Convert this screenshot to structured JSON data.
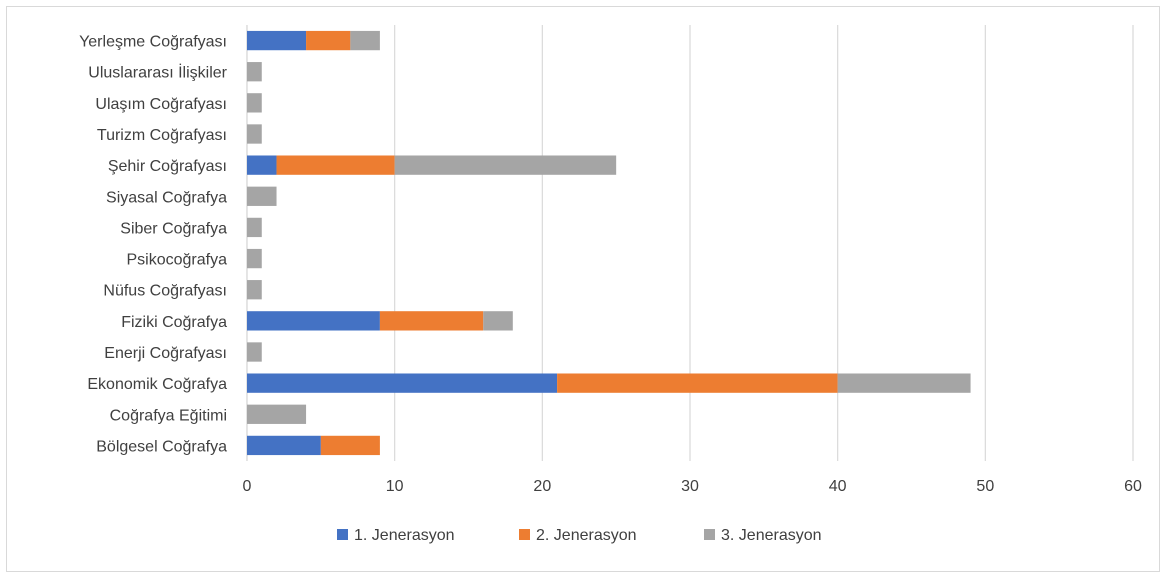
{
  "chart_data": {
    "type": "bar",
    "orientation": "horizontal",
    "stacked": true,
    "categories": [
      "Bölgesel Coğrafya",
      "Coğrafya Eğitimi",
      "Ekonomik Coğrafya",
      "Enerji Coğrafyası",
      "Fiziki Coğrafya",
      "Nüfus Coğrafyası",
      "Psikocoğrafya",
      "Siber Coğrafya",
      "Siyasal Coğrafya",
      "Şehir Coğrafyası",
      "Turizm Coğrafyası",
      "Ulaşım Coğrafyası",
      "Uluslararası İlişkiler",
      "Yerleşme Coğrafyası"
    ],
    "series": [
      {
        "name": "1. Jenerasyon",
        "color": "#4472c4",
        "values": [
          5,
          0,
          21,
          0,
          9,
          0,
          0,
          0,
          0,
          2,
          0,
          0,
          0,
          4
        ]
      },
      {
        "name": "2. Jenerasyon",
        "color": "#ed7d31",
        "values": [
          4,
          0,
          19,
          0,
          7,
          0,
          0,
          0,
          0,
          8,
          0,
          0,
          0,
          3
        ]
      },
      {
        "name": "3. Jenerasyon",
        "color": "#a5a5a5",
        "values": [
          0,
          4,
          9,
          1,
          2,
          1,
          1,
          1,
          2,
          15,
          1,
          1,
          1,
          2
        ]
      }
    ],
    "xlim": [
      0,
      60
    ],
    "xticks": [
      0,
      10,
      20,
      30,
      40,
      50,
      60
    ],
    "grid": "vertical",
    "legend": "bottom",
    "title": "",
    "xlabel": "",
    "ylabel": ""
  }
}
